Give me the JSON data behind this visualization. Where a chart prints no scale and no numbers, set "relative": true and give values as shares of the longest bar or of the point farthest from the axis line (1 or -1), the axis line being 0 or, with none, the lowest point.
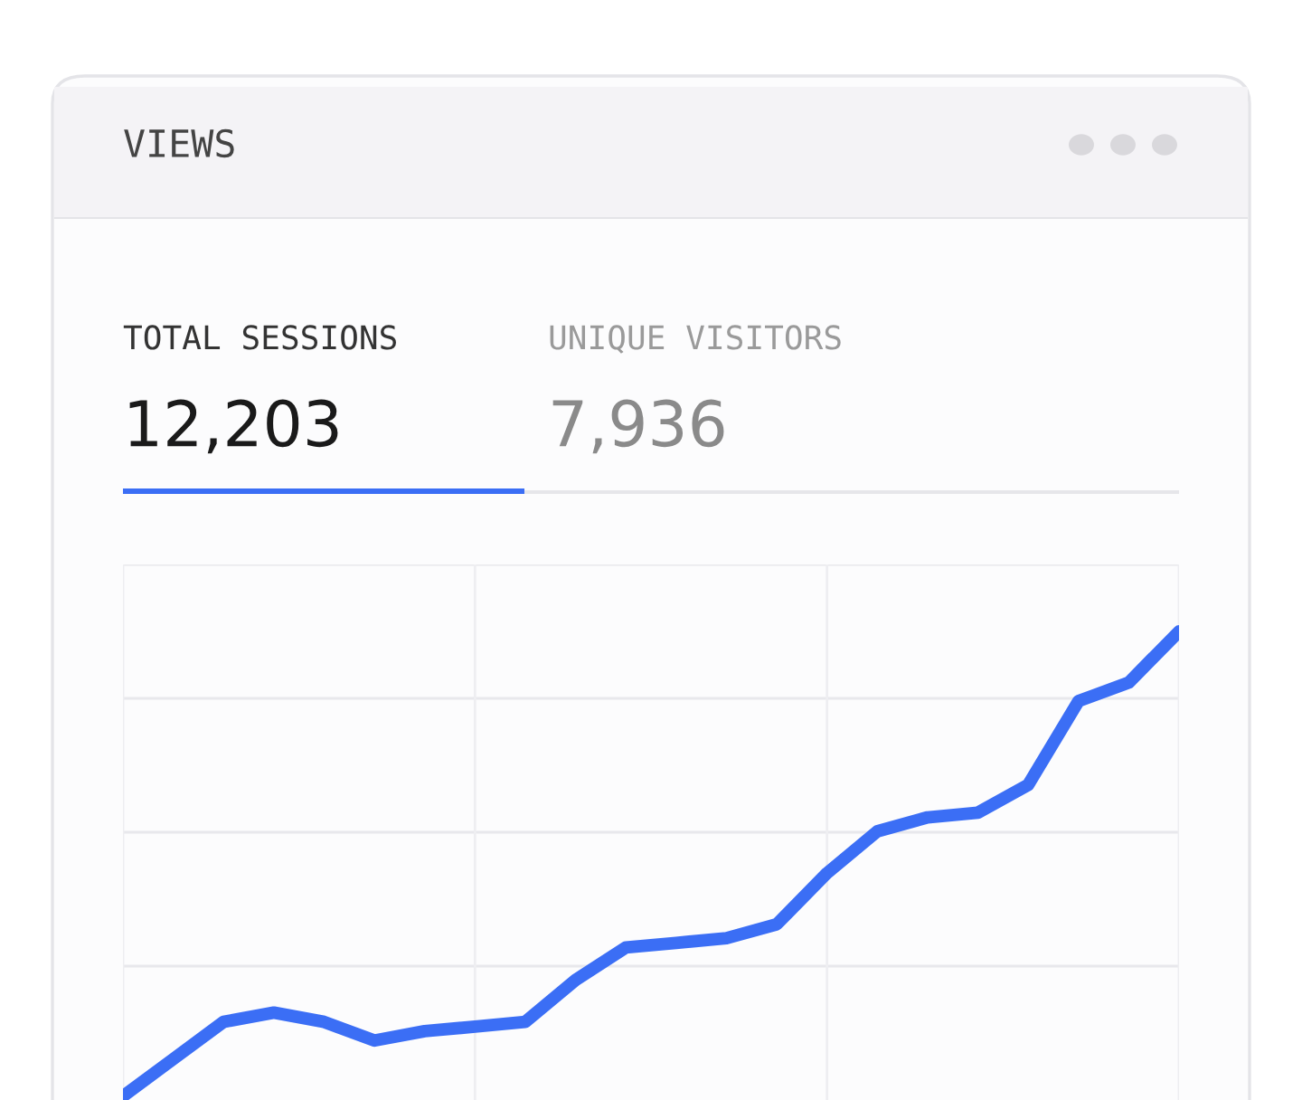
{
  "chart_data": {
    "type": "line",
    "title": "VIEWS",
    "relative": true,
    "grid": true,
    "color": "#3b6ef5",
    "annotations": [
      "TOTAL SESSIONS",
      "12,203",
      "UNIQUE VISITORS",
      "7,936"
    ],
    "categories": [
      null,
      null,
      null,
      null,
      null,
      null,
      null,
      null,
      null,
      null,
      null,
      null,
      null,
      null,
      null,
      null,
      null,
      null,
      null,
      null,
      null,
      null
    ],
    "values": [
      0,
      0.08,
      0.16,
      0.18,
      0.16,
      0.12,
      0.14,
      0.15,
      0.16,
      0.25,
      0.32,
      0.33,
      0.34,
      0.37,
      0.48,
      0.57,
      0.6,
      0.61,
      0.67,
      0.85,
      0.89,
      1.0
    ]
  }
}
